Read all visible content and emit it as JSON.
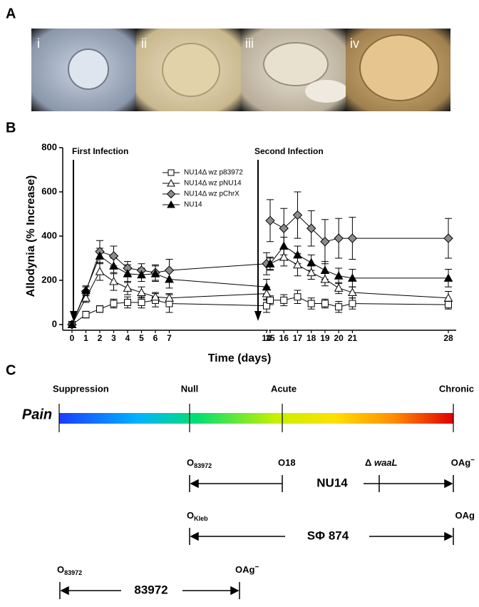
{
  "panel_labels": [
    "A",
    "B",
    "C"
  ],
  "photos": {
    "labels": [
      "i",
      "ii",
      "iii",
      "iv"
    ]
  },
  "chart_data": {
    "type": "line",
    "y_label": "Allodynia (% Increase)",
    "x_label": "Time (days)",
    "annotations": [
      "First Infection",
      "Second Infection"
    ],
    "x": [
      0,
      1,
      2,
      3,
      4,
      5,
      6,
      7,
      14,
      15,
      16,
      17,
      18,
      19,
      20,
      21,
      28
    ],
    "xlim": [
      0,
      28
    ],
    "x_break": [
      14,
      15
    ],
    "xticks": [
      0,
      1,
      2,
      3,
      4,
      5,
      6,
      7,
      14,
      15,
      16,
      17,
      18,
      19,
      20,
      21,
      28
    ],
    "ylim": [
      0,
      800
    ],
    "yticks": [
      0,
      200,
      400,
      600,
      800
    ],
    "legend": "top-center",
    "series": [
      {
        "name": "NU14Δ wz p83972",
        "color": "#000000",
        "marker": "square",
        "marker_fill": "#ffffff",
        "values": [
          0,
          45,
          70,
          95,
          100,
          100,
          110,
          95,
          85,
          110,
          110,
          125,
          95,
          95,
          80,
          95,
          90
        ],
        "errors": [
          10,
          15,
          15,
          20,
          25,
          25,
          30,
          40,
          30,
          20,
          25,
          30,
          25,
          20,
          25,
          25,
          20
        ]
      },
      {
        "name": "NU14Δ wz pNU14",
        "color": "#000000",
        "marker": "triangle",
        "marker_fill": "#ffffff",
        "values": [
          0,
          120,
          240,
          195,
          165,
          145,
          125,
          120,
          140,
          275,
          305,
          270,
          235,
          205,
          165,
          145,
          120
        ],
        "errors": [
          10,
          20,
          40,
          40,
          30,
          25,
          20,
          20,
          30,
          25,
          40,
          50,
          30,
          30,
          25,
          25,
          30
        ]
      },
      {
        "name": "NU14Δ wz pChrX",
        "color": "#000000",
        "marker": "diamond",
        "marker_fill": "#8c8c8c",
        "values": [
          0,
          150,
          330,
          310,
          255,
          245,
          235,
          245,
          275,
          470,
          435,
          495,
          435,
          375,
          390,
          390,
          390
        ],
        "errors": [
          10,
          20,
          50,
          45,
          30,
          30,
          35,
          50,
          50,
          95,
          90,
          105,
          80,
          100,
          90,
          95,
          90
        ]
      },
      {
        "name": "NU14",
        "color": "#000000",
        "marker": "triangle",
        "marker_fill": "#000000",
        "values": [
          0,
          155,
          310,
          265,
          230,
          225,
          230,
          205,
          170,
          275,
          355,
          315,
          280,
          245,
          220,
          210,
          210
        ],
        "errors": [
          10,
          20,
          35,
          35,
          40,
          30,
          35,
          40,
          35,
          30,
          40,
          40,
          35,
          40,
          35,
          40,
          40
        ]
      }
    ]
  },
  "panel_c": {
    "scale_label": "Pain",
    "stages": [
      "Suppression",
      "Null",
      "Acute",
      "Chronic"
    ],
    "strains": [
      {
        "name": "NU14",
        "markers": [
          {
            "base": "O",
            "sub": "83972"
          },
          {
            "base": "O18"
          },
          {
            "base": "Δ ",
            "em": "waaL"
          },
          {
            "base": "OAg",
            "sup": "−"
          }
        ]
      },
      {
        "name": "SΦ 874",
        "markers": [
          {
            "base": "O",
            "sub": "Kleb"
          },
          {
            "base": "OAg"
          }
        ]
      },
      {
        "name": "83972",
        "markers": [
          {
            "base": "O",
            "sub": "83972"
          },
          {
            "base": "OAg",
            "sup": "−"
          }
        ]
      }
    ]
  }
}
